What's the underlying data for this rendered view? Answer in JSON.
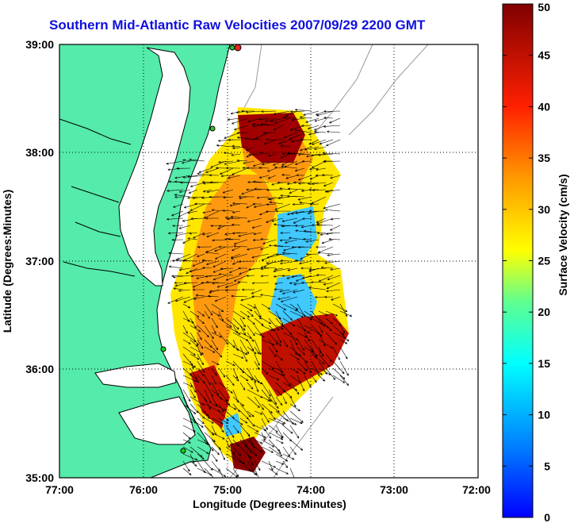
{
  "title": "Southern Mid-Atlantic Raw Velocities 2007/09/29 2200 GMT",
  "x_axis": {
    "label": "Longitude (Degrees:Minutes)",
    "ticks": [
      "77:00",
      "76:00",
      "75:00",
      "74:00",
      "73:00",
      "72:00"
    ]
  },
  "y_axis": {
    "label": "Latitude (Degrees:Minutes)",
    "ticks": [
      "39:00",
      "38:00",
      "37:00",
      "36:00",
      "35:00"
    ]
  },
  "colorbar": {
    "label": "Surface Velocity (cm/s)",
    "ticks": [
      "50",
      "45",
      "40",
      "35",
      "30",
      "25",
      "20",
      "15",
      "10",
      "5",
      "0"
    ],
    "min": 0,
    "max": 50,
    "colormap": "jet"
  },
  "colors": {
    "land": "#55ebaa",
    "title": "#1010e0",
    "coastline": "#000000",
    "bathymetry": "#9a9a9a",
    "station_green": "#22cc22",
    "station_red": "#ee2222"
  },
  "map": {
    "lon_range": [
      -77,
      -72
    ],
    "lat_range": [
      35,
      39
    ],
    "grid": "dotted"
  }
}
